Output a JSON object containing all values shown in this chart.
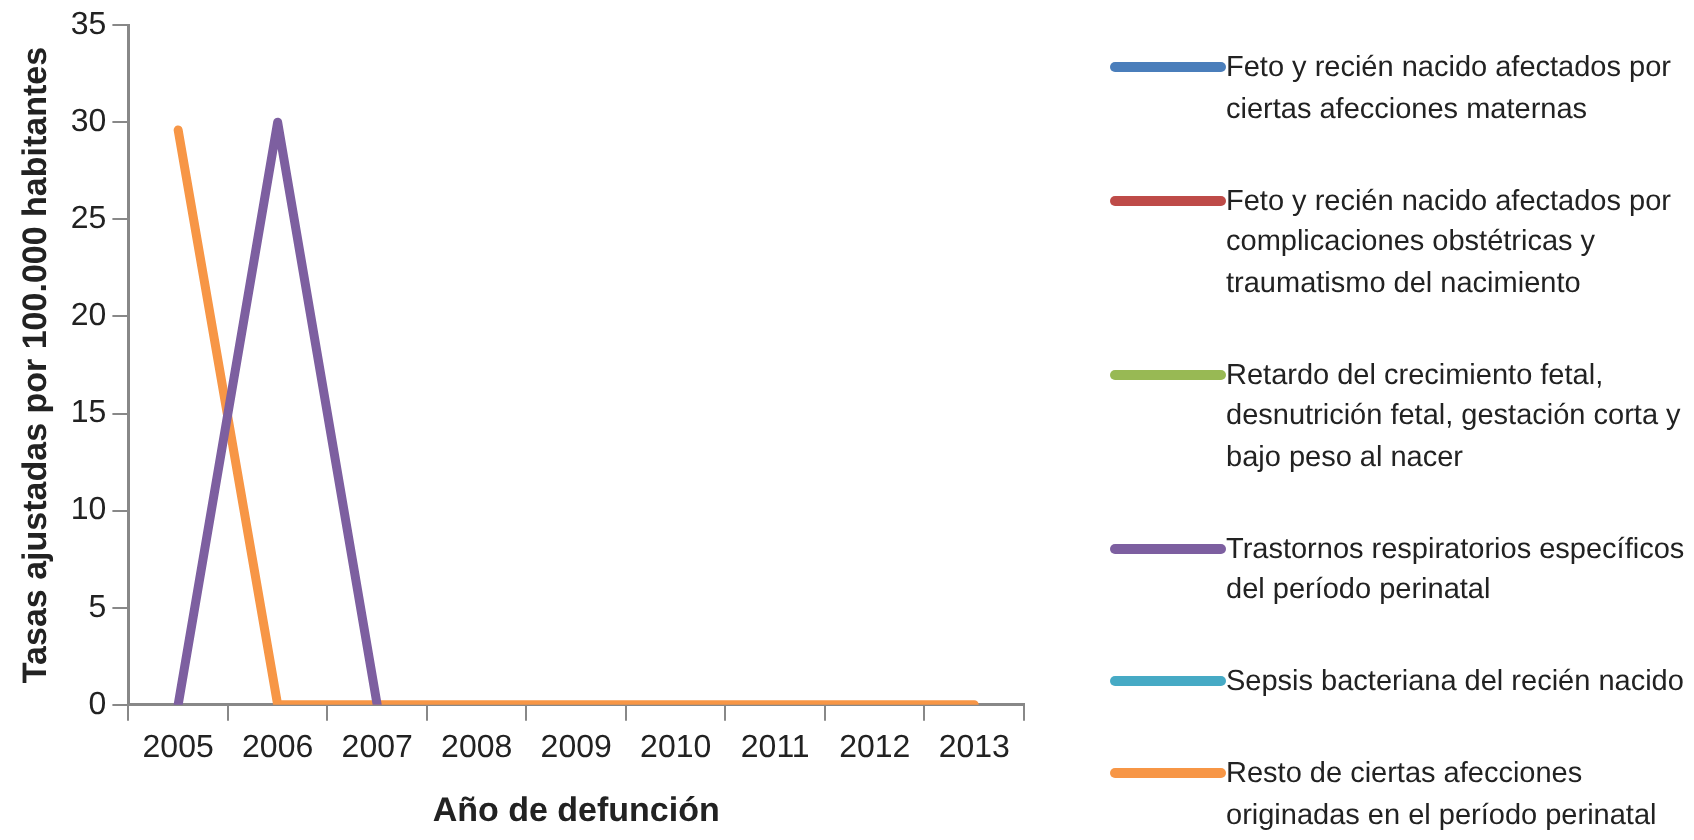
{
  "chart_data": {
    "type": "line",
    "xlabel": "Año de defunción",
    "ylabel": "Tasas ajustadas por 100.000 habitantes",
    "categories": [
      "2005",
      "2006",
      "2007",
      "2008",
      "2009",
      "2010",
      "2011",
      "2012",
      "2013"
    ],
    "ylim": [
      0,
      35
    ],
    "yticks": [
      0,
      5,
      10,
      15,
      20,
      25,
      30,
      35
    ],
    "grid": false,
    "legend": "right",
    "marker": "none",
    "line_style": "solid",
    "series": [
      {
        "name": "Feto y recién nacido afectados por ciertas afecciones maternas",
        "color": "#4a7ebb",
        "values": [
          null,
          null,
          null,
          null,
          null,
          null,
          null,
          null,
          null
        ]
      },
      {
        "name": "Feto y recién nacido afectados por complicaciones obstétricas y traumatismo del nacimiento",
        "color": "#be4b48",
        "values": [
          null,
          null,
          null,
          null,
          null,
          null,
          null,
          null,
          null
        ]
      },
      {
        "name": "Retardo del crecimiento fetal, desnutrición fetal, gestación corta y bajo peso al nacer",
        "color": "#98b954",
        "values": [
          null,
          null,
          null,
          null,
          null,
          null,
          null,
          null,
          null
        ]
      },
      {
        "name": "Trastornos respiratorios específicos del período perinatal",
        "color": "#7d5fa0",
        "values": [
          0,
          30,
          0,
          null,
          null,
          null,
          null,
          null,
          null
        ]
      },
      {
        "name": "Sepsis bacteriana del recién nacido",
        "color": "#46aac5",
        "values": [
          null,
          null,
          null,
          null,
          null,
          null,
          null,
          null,
          null
        ]
      },
      {
        "name": "Resto de ciertas afecciones originadas en el período perinatal",
        "color": "#f79646",
        "values": [
          29.6,
          0,
          0,
          0,
          0,
          0,
          0,
          0,
          0
        ]
      }
    ]
  }
}
